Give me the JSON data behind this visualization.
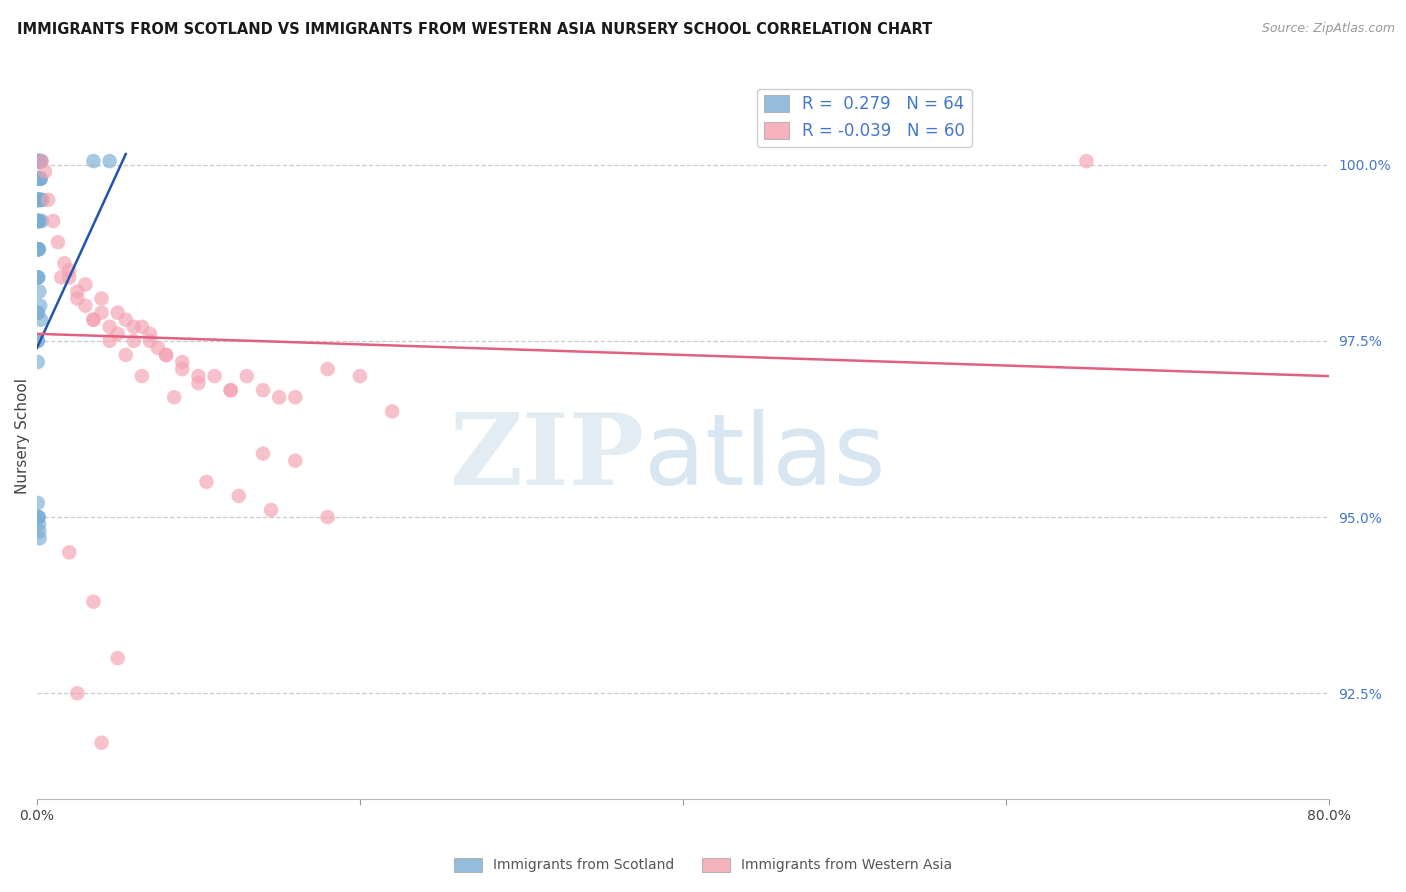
{
  "title": "IMMIGRANTS FROM SCOTLAND VS IMMIGRANTS FROM WESTERN ASIA NURSERY SCHOOL CORRELATION CHART",
  "source": "Source: ZipAtlas.com",
  "ylabel": "Nursery School",
  "xlim": [
    0.0,
    80.0
  ],
  "ylim": [
    91.0,
    101.3
  ],
  "yticks": [
    92.5,
    95.0,
    97.5,
    100.0
  ],
  "ytick_labels": [
    "92.5%",
    "95.0%",
    "97.5%",
    "100.0%"
  ],
  "xtick_positions": [
    0,
    20,
    40,
    60,
    80
  ],
  "xtick_labels": [
    "0.0%",
    "",
    "",
    "",
    "80.0%"
  ],
  "legend_blue_r": "0.279",
  "legend_blue_n": "64",
  "legend_pink_r": "-0.039",
  "legend_pink_n": "60",
  "blue_color": "#7aadd4",
  "pink_color": "#f4a0b0",
  "blue_line_color": "#2255aa",
  "pink_line_color": "#e06080",
  "blue_scatter_x": [
    0.05,
    0.08,
    0.1,
    0.12,
    0.14,
    0.16,
    0.18,
    0.2,
    0.22,
    0.25,
    0.05,
    0.07,
    0.09,
    0.11,
    0.13,
    0.15,
    0.17,
    0.19,
    0.21,
    0.24,
    0.05,
    0.06,
    0.08,
    0.1,
    0.12,
    0.14,
    0.16,
    0.2,
    0.23,
    0.05,
    0.06,
    0.08,
    0.1,
    0.12,
    0.14,
    0.05,
    0.06,
    0.08,
    0.1,
    0.12,
    0.05,
    0.06,
    0.08,
    0.05,
    0.07,
    0.05,
    0.06,
    0.05,
    0.3,
    0.35,
    0.15,
    0.2,
    0.25,
    3.5,
    4.5,
    0.05,
    0.07,
    0.09,
    0.11,
    0.13,
    0.15,
    0.17
  ],
  "blue_scatter_y": [
    100.05,
    100.05,
    100.05,
    100.05,
    100.05,
    100.05,
    100.05,
    100.05,
    100.05,
    100.05,
    99.8,
    99.8,
    99.8,
    99.8,
    99.8,
    99.8,
    99.8,
    99.8,
    99.8,
    99.8,
    99.5,
    99.5,
    99.5,
    99.5,
    99.5,
    99.5,
    99.5,
    99.5,
    99.5,
    99.2,
    99.2,
    99.2,
    99.2,
    99.2,
    99.2,
    98.8,
    98.8,
    98.8,
    98.8,
    98.8,
    98.4,
    98.4,
    98.4,
    97.9,
    97.9,
    97.5,
    97.5,
    97.2,
    99.2,
    99.5,
    98.2,
    98.0,
    97.8,
    100.05,
    100.05,
    95.2,
    95.0,
    95.0,
    95.0,
    94.9,
    94.8,
    94.7
  ],
  "pink_scatter_x": [
    0.3,
    0.5,
    0.7,
    1.0,
    1.3,
    1.7,
    2.0,
    2.5,
    3.0,
    3.5,
    4.0,
    4.5,
    5.0,
    5.5,
    6.0,
    6.5,
    7.0,
    7.5,
    8.0,
    9.0,
    10.0,
    11.0,
    12.0,
    13.0,
    14.0,
    15.0,
    16.0,
    18.0,
    20.0,
    22.0,
    2.0,
    3.0,
    4.0,
    5.0,
    6.0,
    7.0,
    8.0,
    9.0,
    10.0,
    12.0,
    14.0,
    16.0,
    18.0,
    1.5,
    2.5,
    3.5,
    4.5,
    5.5,
    6.5,
    8.5,
    10.5,
    12.5,
    14.5,
    2.0,
    3.5,
    5.0,
    2.5,
    4.0,
    65.0
  ],
  "pink_scatter_y": [
    100.05,
    99.9,
    99.5,
    99.2,
    98.9,
    98.6,
    98.4,
    98.2,
    98.0,
    97.8,
    97.9,
    97.7,
    97.6,
    97.8,
    97.5,
    97.7,
    97.5,
    97.4,
    97.3,
    97.2,
    97.0,
    97.0,
    96.8,
    97.0,
    96.8,
    96.7,
    96.7,
    97.1,
    97.0,
    96.5,
    98.5,
    98.3,
    98.1,
    97.9,
    97.7,
    97.6,
    97.3,
    97.1,
    96.9,
    96.8,
    95.9,
    95.8,
    95.0,
    98.4,
    98.1,
    97.8,
    97.5,
    97.3,
    97.0,
    96.7,
    95.5,
    95.3,
    95.1,
    94.5,
    93.8,
    93.0,
    92.5,
    91.8,
    100.05
  ],
  "blue_line_x0": 0.0,
  "blue_line_x1": 5.5,
  "blue_line_y0": 97.4,
  "blue_line_y1": 100.15,
  "pink_line_x0": 0.0,
  "pink_line_x1": 80.0,
  "pink_line_y0": 97.6,
  "pink_line_y1": 97.0,
  "watermark_zip": "ZIP",
  "watermark_atlas": "atlas"
}
